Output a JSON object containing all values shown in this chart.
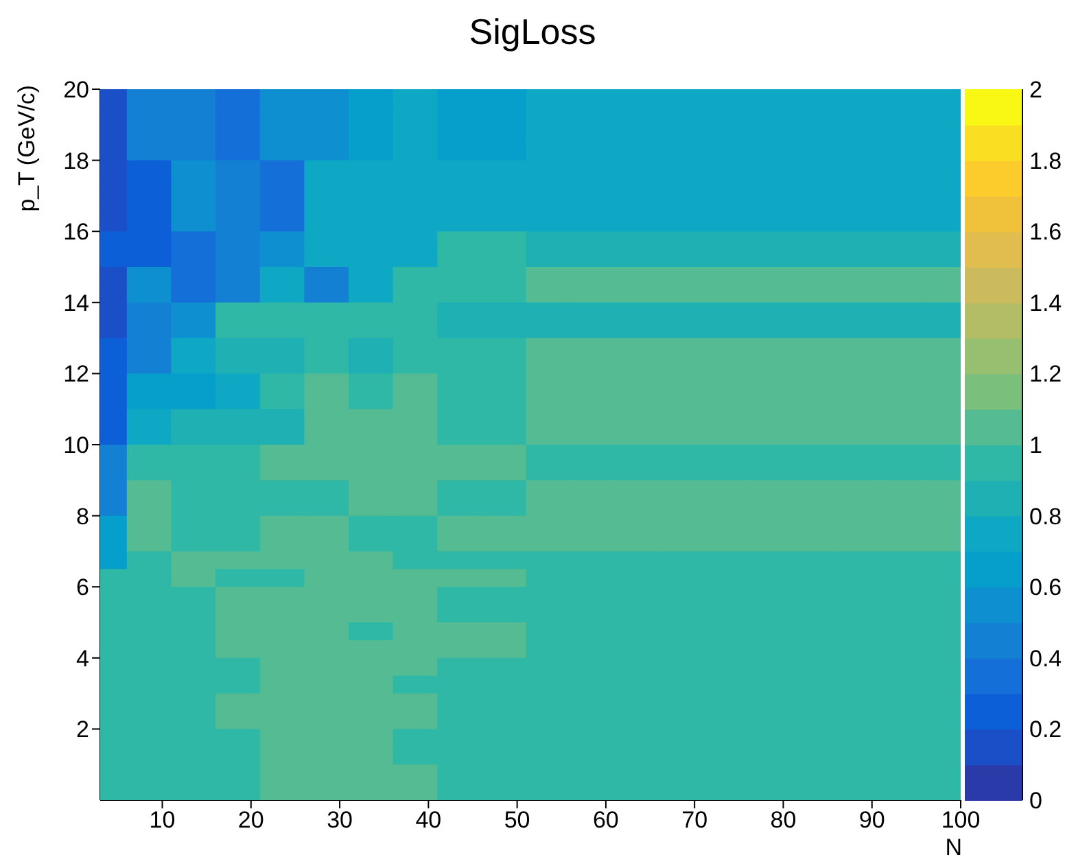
{
  "chart_data": {
    "type": "heatmap",
    "title": "SigLoss",
    "xlabel": "N",
    "ylabel": "p_T (GeV/c)",
    "x": [
      3.5,
      8.5,
      13.5,
      18.5,
      23.5,
      28.5,
      33.5,
      38.5,
      43.5,
      48.5,
      53.5,
      58.5,
      63.5,
      68.5,
      73.5,
      78.5,
      83.5,
      88.5,
      93.5,
      98.5
    ],
    "cells": [
      [
        0.15,
        0.45,
        0.45,
        0.35,
        0.55,
        0.55,
        0.65,
        0.75,
        0.65,
        0.65,
        0.75,
        0.75,
        0.75,
        0.75,
        0.75,
        0.75,
        0.75,
        0.75,
        0.75,
        0.75
      ],
      [
        0.15,
        0.45,
        0.45,
        0.35,
        0.55,
        0.55,
        0.65,
        0.75,
        0.65,
        0.65,
        0.75,
        0.75,
        0.75,
        0.75,
        0.75,
        0.75,
        0.75,
        0.75,
        0.75,
        0.75
      ],
      [
        0.15,
        0.45,
        0.45,
        0.35,
        0.55,
        0.55,
        0.65,
        0.75,
        0.65,
        0.65,
        0.75,
        0.75,
        0.75,
        0.75,
        0.75,
        0.75,
        0.75,
        0.75,
        0.75,
        0.75
      ],
      [
        0.15,
        0.45,
        0.45,
        0.35,
        0.55,
        0.55,
        0.65,
        0.75,
        0.65,
        0.65,
        0.75,
        0.75,
        0.75,
        0.75,
        0.75,
        0.75,
        0.75,
        0.75,
        0.75,
        0.75
      ],
      [
        0.15,
        0.25,
        0.55,
        0.45,
        0.35,
        0.75,
        0.75,
        0.75,
        0.75,
        0.75,
        0.75,
        0.75,
        0.75,
        0.75,
        0.75,
        0.75,
        0.75,
        0.75,
        0.75,
        0.75
      ],
      [
        0.15,
        0.25,
        0.55,
        0.45,
        0.35,
        0.75,
        0.75,
        0.75,
        0.75,
        0.75,
        0.75,
        0.75,
        0.75,
        0.75,
        0.75,
        0.75,
        0.75,
        0.75,
        0.75,
        0.75
      ],
      [
        0.15,
        0.25,
        0.55,
        0.45,
        0.35,
        0.75,
        0.75,
        0.75,
        0.75,
        0.75,
        0.75,
        0.75,
        0.75,
        0.75,
        0.75,
        0.75,
        0.75,
        0.75,
        0.75,
        0.75
      ],
      [
        0.15,
        0.25,
        0.55,
        0.45,
        0.35,
        0.75,
        0.75,
        0.75,
        0.75,
        0.75,
        0.75,
        0.75,
        0.75,
        0.75,
        0.75,
        0.75,
        0.75,
        0.75,
        0.75,
        0.75
      ],
      [
        0.25,
        0.25,
        0.35,
        0.45,
        0.55,
        0.75,
        0.75,
        0.75,
        0.95,
        0.95,
        0.85,
        0.85,
        0.85,
        0.85,
        0.85,
        0.85,
        0.85,
        0.85,
        0.85,
        0.85
      ],
      [
        0.25,
        0.25,
        0.35,
        0.45,
        0.55,
        0.75,
        0.75,
        0.75,
        0.95,
        0.95,
        0.85,
        0.85,
        0.85,
        0.85,
        0.85,
        0.85,
        0.85,
        0.85,
        0.85,
        0.85
      ],
      [
        0.15,
        0.55,
        0.35,
        0.45,
        0.75,
        0.45,
        0.75,
        0.95,
        0.95,
        0.95,
        1.05,
        1.05,
        1.05,
        1.05,
        1.05,
        1.05,
        1.05,
        1.05,
        1.05,
        1.05
      ],
      [
        0.15,
        0.55,
        0.35,
        0.45,
        0.75,
        0.45,
        0.75,
        0.95,
        0.95,
        0.95,
        1.05,
        1.05,
        1.05,
        1.05,
        1.05,
        1.05,
        1.05,
        1.05,
        1.05,
        1.05
      ],
      [
        0.15,
        0.45,
        0.55,
        0.95,
        0.95,
        0.95,
        0.95,
        0.95,
        0.85,
        0.85,
        0.85,
        0.85,
        0.85,
        0.85,
        0.85,
        0.85,
        0.85,
        0.85,
        0.85,
        0.85
      ],
      [
        0.15,
        0.45,
        0.55,
        0.95,
        0.95,
        0.95,
        0.95,
        0.95,
        0.85,
        0.85,
        0.85,
        0.85,
        0.85,
        0.85,
        0.85,
        0.85,
        0.85,
        0.85,
        0.85,
        0.85
      ],
      [
        0.25,
        0.45,
        0.75,
        0.85,
        0.85,
        0.95,
        0.85,
        0.95,
        0.95,
        0.95,
        1.05,
        1.05,
        1.05,
        1.05,
        1.05,
        1.05,
        1.05,
        1.05,
        1.05,
        1.05
      ],
      [
        0.25,
        0.45,
        0.75,
        0.85,
        0.85,
        0.95,
        0.85,
        0.95,
        0.95,
        0.95,
        1.05,
        1.05,
        1.05,
        1.05,
        1.05,
        1.05,
        1.05,
        1.05,
        1.05,
        1.05
      ],
      [
        0.25,
        0.65,
        0.65,
        0.75,
        0.95,
        1.05,
        0.95,
        1.05,
        0.95,
        0.95,
        1.05,
        1.05,
        1.05,
        1.05,
        1.05,
        1.05,
        1.05,
        1.05,
        1.05,
        1.05
      ],
      [
        0.25,
        0.65,
        0.65,
        0.75,
        0.95,
        1.05,
        0.95,
        1.05,
        0.95,
        0.95,
        1.05,
        1.05,
        1.05,
        1.05,
        1.05,
        1.05,
        1.05,
        1.05,
        1.05,
        1.05
      ],
      [
        0.25,
        0.75,
        0.85,
        0.85,
        0.85,
        1.05,
        1.05,
        1.05,
        0.95,
        0.95,
        1.05,
        1.05,
        1.05,
        1.05,
        1.05,
        1.05,
        1.05,
        1.05,
        1.05,
        1.05
      ],
      [
        0.25,
        0.75,
        0.85,
        0.85,
        0.85,
        1.05,
        1.05,
        1.05,
        0.95,
        0.95,
        1.05,
        1.05,
        1.05,
        1.05,
        1.05,
        1.05,
        1.05,
        1.05,
        1.05,
        1.05
      ],
      [
        0.45,
        0.95,
        0.95,
        0.95,
        1.05,
        1.05,
        1.05,
        1.05,
        1.05,
        1.05,
        0.95,
        0.95,
        0.95,
        0.95,
        0.95,
        0.95,
        0.95,
        0.95,
        0.95,
        0.95
      ],
      [
        0.45,
        0.95,
        0.95,
        0.95,
        1.05,
        1.05,
        1.05,
        1.05,
        1.05,
        1.05,
        0.95,
        0.95,
        0.95,
        0.95,
        0.95,
        0.95,
        0.95,
        0.95,
        0.95,
        0.95
      ],
      [
        0.45,
        1.05,
        0.95,
        0.95,
        0.95,
        0.95,
        1.05,
        1.05,
        0.95,
        0.95,
        1.05,
        1.05,
        1.05,
        1.05,
        1.05,
        1.05,
        1.05,
        1.05,
        1.05,
        1.05
      ],
      [
        0.45,
        1.05,
        0.95,
        0.95,
        0.95,
        0.95,
        1.05,
        1.05,
        0.95,
        0.95,
        1.05,
        1.05,
        1.05,
        1.05,
        1.05,
        1.05,
        1.05,
        1.05,
        1.05,
        1.05
      ],
      [
        0.65,
        1.05,
        0.95,
        0.95,
        1.05,
        1.05,
        0.95,
        0.95,
        1.05,
        1.05,
        1.05,
        1.05,
        1.05,
        1.05,
        1.05,
        1.05,
        1.05,
        1.05,
        1.05,
        1.05
      ],
      [
        0.65,
        1.05,
        0.95,
        0.95,
        1.05,
        1.05,
        0.95,
        0.95,
        1.05,
        1.05,
        1.05,
        1.05,
        1.05,
        1.05,
        1.05,
        1.05,
        1.05,
        1.05,
        1.05,
        1.05
      ],
      [
        0.65,
        0.95,
        1.05,
        1.05,
        1.05,
        1.05,
        1.05,
        0.95,
        0.95,
        0.95,
        0.95,
        0.95,
        0.95,
        0.95,
        0.95,
        0.95,
        0.95,
        0.95,
        0.95,
        0.95
      ],
      [
        0.95,
        0.95,
        1.05,
        0.95,
        0.95,
        1.05,
        1.05,
        1.05,
        1.05,
        1.05,
        0.95,
        0.95,
        0.95,
        0.95,
        0.95,
        0.95,
        0.95,
        0.95,
        0.95,
        0.95
      ],
      [
        0.95,
        0.95,
        0.95,
        1.05,
        1.05,
        1.05,
        1.05,
        1.05,
        0.95,
        0.95,
        0.95,
        0.95,
        0.95,
        0.95,
        0.95,
        0.95,
        0.95,
        0.95,
        0.95,
        0.95
      ],
      [
        0.95,
        0.95,
        0.95,
        1.05,
        1.05,
        1.05,
        1.05,
        1.05,
        0.95,
        0.95,
        0.95,
        0.95,
        0.95,
        0.95,
        0.95,
        0.95,
        0.95,
        0.95,
        0.95,
        0.95
      ],
      [
        0.95,
        0.95,
        0.95,
        1.05,
        1.05,
        1.05,
        0.95,
        1.05,
        1.05,
        1.05,
        0.95,
        0.95,
        0.95,
        0.95,
        0.95,
        0.95,
        0.95,
        0.95,
        0.95,
        0.95
      ],
      [
        0.95,
        0.95,
        0.95,
        1.05,
        1.05,
        1.05,
        1.05,
        1.05,
        1.05,
        1.05,
        0.95,
        0.95,
        0.95,
        0.95,
        0.95,
        0.95,
        0.95,
        0.95,
        0.95,
        0.95
      ],
      [
        0.95,
        0.95,
        0.95,
        0.95,
        1.05,
        1.05,
        1.05,
        1.05,
        0.95,
        0.95,
        0.95,
        0.95,
        0.95,
        0.95,
        0.95,
        0.95,
        0.95,
        0.95,
        0.95,
        0.95
      ],
      [
        0.95,
        0.95,
        0.95,
        0.95,
        1.05,
        1.05,
        1.05,
        0.95,
        0.95,
        0.95,
        0.95,
        0.95,
        0.95,
        0.95,
        0.95,
        0.95,
        0.95,
        0.95,
        0.95,
        0.95
      ],
      [
        0.95,
        0.95,
        0.95,
        1.05,
        1.05,
        1.05,
        1.05,
        1.05,
        0.95,
        0.95,
        0.95,
        0.95,
        0.95,
        0.95,
        0.95,
        0.95,
        0.95,
        0.95,
        0.95,
        0.95
      ],
      [
        0.95,
        0.95,
        0.95,
        1.05,
        1.05,
        1.05,
        1.05,
        1.05,
        0.95,
        0.95,
        0.95,
        0.95,
        0.95,
        0.95,
        0.95,
        0.95,
        0.95,
        0.95,
        0.95,
        0.95
      ],
      [
        0.95,
        0.95,
        0.95,
        0.95,
        1.05,
        1.05,
        1.05,
        0.95,
        0.95,
        0.95,
        0.95,
        0.95,
        0.95,
        0.95,
        0.95,
        0.95,
        0.95,
        0.95,
        0.95,
        0.95
      ],
      [
        0.95,
        0.95,
        0.95,
        0.95,
        1.05,
        1.05,
        1.05,
        0.95,
        0.95,
        0.95,
        0.95,
        0.95,
        0.95,
        0.95,
        0.95,
        0.95,
        0.95,
        0.95,
        0.95,
        0.95
      ],
      [
        0.95,
        0.95,
        0.95,
        0.95,
        1.05,
        1.05,
        1.05,
        1.05,
        0.95,
        0.95,
        0.95,
        0.95,
        0.95,
        0.95,
        0.95,
        0.95,
        0.95,
        0.95,
        0.95,
        0.95
      ],
      [
        0.95,
        0.95,
        0.95,
        0.95,
        1.05,
        1.05,
        1.05,
        1.05,
        0.95,
        0.95,
        0.95,
        0.95,
        0.95,
        0.95,
        0.95,
        0.95,
        0.95,
        0.95,
        0.95,
        0.95
      ]
    ],
    "xlim": [
      3,
      100
    ],
    "xticks": [
      10,
      20,
      30,
      40,
      50,
      60,
      70,
      80,
      90,
      100
    ],
    "ylim": [
      0,
      20
    ],
    "yticks": [
      2,
      4,
      6,
      8,
      10,
      12,
      14,
      16,
      18,
      20
    ],
    "clim": [
      0,
      2
    ],
    "cticks": [
      0,
      0.2,
      0.4,
      0.6,
      0.8,
      1,
      1.2,
      1.4,
      1.6,
      1.8,
      2
    ]
  }
}
